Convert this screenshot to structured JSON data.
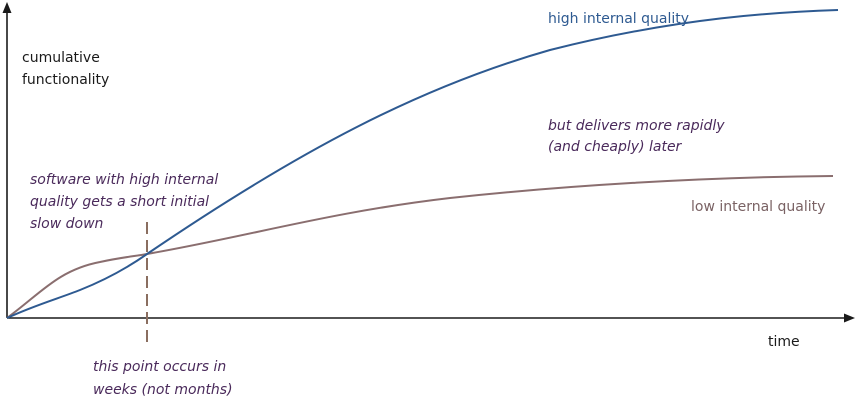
{
  "axes": {
    "y_label_lines": [
      "cumulative",
      "functionality"
    ],
    "x_label": "time"
  },
  "series": {
    "high": {
      "label": "high internal quality",
      "color": "#2e5a91"
    },
    "low": {
      "label": "low internal quality",
      "color": "#8a6e6f"
    }
  },
  "annotations": {
    "slow_down_lines": [
      "software with high internal",
      "quality gets a short initial",
      "slow down"
    ],
    "delivers_lines": [
      "but delivers more rapidly",
      "(and cheaply) later"
    ],
    "crossover_lines": [
      "this point occurs in",
      "weeks (not months)"
    ]
  },
  "colors": {
    "axis": "#1a1a1a",
    "annotation_text": "#4a2a5b",
    "crossover_marker": "#8a6e60",
    "high_label": "#2e5a91",
    "low_label": "#7a6264"
  }
}
